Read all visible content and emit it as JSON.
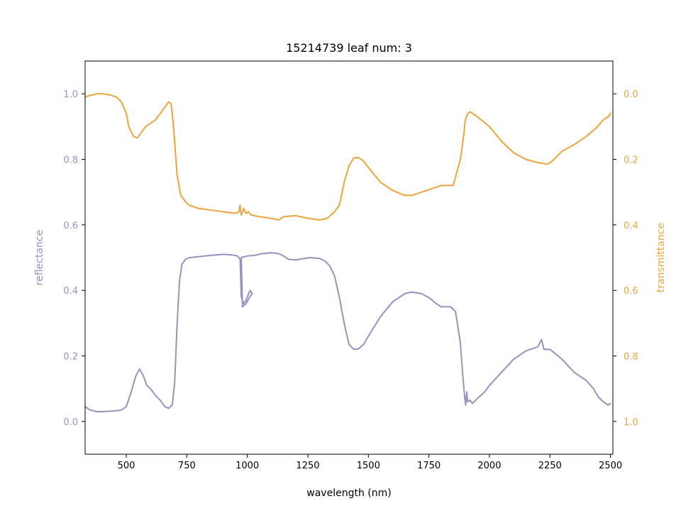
{
  "colors": {
    "reflectance": "#9891c3",
    "transmittance": "#eea43c",
    "axis": "#000000",
    "background": "#ffffff"
  },
  "chart_data": {
    "type": "line",
    "title": "15214739 leaf num: 3",
    "xlabel": "wavelength (nm)",
    "ylabel_left": "reflectance",
    "ylabel_right": "transmittance",
    "xlim": [
      330,
      2510
    ],
    "ylim_left": [
      -0.1,
      1.1
    ],
    "ylim_right": [
      1.1,
      -0.1
    ],
    "right_axis_inverted": true,
    "grid": false,
    "x_ticks": [
      500,
      750,
      1000,
      1250,
      1500,
      1750,
      2000,
      2250,
      2500
    ],
    "x_tick_labels": [
      "500",
      "750",
      "1000",
      "1250",
      "1500",
      "1750",
      "2000",
      "2250",
      "2500"
    ],
    "y_left_ticks": [
      0.0,
      0.2,
      0.4,
      0.6,
      0.8,
      1.0
    ],
    "y_left_tick_labels": [
      "0.0",
      "0.2",
      "0.4",
      "0.6",
      "0.8",
      "1.0"
    ],
    "y_right_ticks": [
      0.0,
      0.2,
      0.4,
      0.6,
      0.8,
      1.0
    ],
    "y_right_tick_labels": [
      "0.0",
      "0.2",
      "0.4",
      "0.6",
      "0.8",
      "1.0"
    ],
    "series": [
      {
        "key": "reflectance",
        "axis": "left",
        "points": [
          [
            330,
            0.045
          ],
          [
            350,
            0.035
          ],
          [
            380,
            0.03
          ],
          [
            400,
            0.03
          ],
          [
            450,
            0.032
          ],
          [
            480,
            0.035
          ],
          [
            500,
            0.045
          ],
          [
            520,
            0.09
          ],
          [
            540,
            0.14
          ],
          [
            555,
            0.16
          ],
          [
            570,
            0.14
          ],
          [
            585,
            0.11
          ],
          [
            600,
            0.1
          ],
          [
            620,
            0.08
          ],
          [
            640,
            0.065
          ],
          [
            660,
            0.045
          ],
          [
            675,
            0.04
          ],
          [
            690,
            0.05
          ],
          [
            700,
            0.12
          ],
          [
            710,
            0.3
          ],
          [
            720,
            0.43
          ],
          [
            730,
            0.48
          ],
          [
            745,
            0.495
          ],
          [
            760,
            0.5
          ],
          [
            800,
            0.503
          ],
          [
            850,
            0.507
          ],
          [
            900,
            0.51
          ],
          [
            940,
            0.508
          ],
          [
            960,
            0.505
          ],
          [
            970,
            0.495
          ],
          [
            975,
            0.38
          ],
          [
            985,
            0.36
          ],
          [
            995,
            0.37
          ],
          [
            1005,
            0.39
          ],
          [
            1012,
            0.4
          ],
          [
            1020,
            0.39
          ],
          [
            1010,
            0.38
          ],
          [
            995,
            0.36
          ],
          [
            980,
            0.35
          ],
          [
            975,
            0.5
          ],
          [
            1000,
            0.505
          ],
          [
            1030,
            0.507
          ],
          [
            1060,
            0.512
          ],
          [
            1100,
            0.515
          ],
          [
            1130,
            0.512
          ],
          [
            1150,
            0.505
          ],
          [
            1170,
            0.495
          ],
          [
            1200,
            0.493
          ],
          [
            1230,
            0.497
          ],
          [
            1260,
            0.5
          ],
          [
            1300,
            0.497
          ],
          [
            1320,
            0.49
          ],
          [
            1340,
            0.475
          ],
          [
            1360,
            0.445
          ],
          [
            1380,
            0.38
          ],
          [
            1400,
            0.3
          ],
          [
            1420,
            0.235
          ],
          [
            1440,
            0.22
          ],
          [
            1460,
            0.222
          ],
          [
            1480,
            0.235
          ],
          [
            1500,
            0.26
          ],
          [
            1550,
            0.32
          ],
          [
            1600,
            0.365
          ],
          [
            1650,
            0.39
          ],
          [
            1680,
            0.395
          ],
          [
            1720,
            0.39
          ],
          [
            1750,
            0.378
          ],
          [
            1780,
            0.36
          ],
          [
            1800,
            0.35
          ],
          [
            1840,
            0.35
          ],
          [
            1860,
            0.335
          ],
          [
            1880,
            0.24
          ],
          [
            1890,
            0.14
          ],
          [
            1897,
            0.08
          ],
          [
            1902,
            0.05
          ],
          [
            1906,
            0.09
          ],
          [
            1910,
            0.06
          ],
          [
            1920,
            0.065
          ],
          [
            1930,
            0.055
          ],
          [
            1950,
            0.07
          ],
          [
            1980,
            0.09
          ],
          [
            2000,
            0.11
          ],
          [
            2050,
            0.15
          ],
          [
            2100,
            0.19
          ],
          [
            2150,
            0.215
          ],
          [
            2200,
            0.228
          ],
          [
            2215,
            0.25
          ],
          [
            2225,
            0.22
          ],
          [
            2250,
            0.22
          ],
          [
            2300,
            0.19
          ],
          [
            2350,
            0.15
          ],
          [
            2400,
            0.125
          ],
          [
            2430,
            0.1
          ],
          [
            2450,
            0.075
          ],
          [
            2470,
            0.06
          ],
          [
            2490,
            0.05
          ],
          [
            2500,
            0.055
          ]
        ]
      },
      {
        "key": "transmittance",
        "axis": "right",
        "points": [
          [
            330,
            0.01
          ],
          [
            350,
            0.005
          ],
          [
            380,
            0.0
          ],
          [
            400,
            0.0
          ],
          [
            430,
            0.003
          ],
          [
            460,
            0.01
          ],
          [
            480,
            0.025
          ],
          [
            500,
            0.06
          ],
          [
            510,
            0.1
          ],
          [
            530,
            0.13
          ],
          [
            545,
            0.135
          ],
          [
            560,
            0.12
          ],
          [
            580,
            0.1
          ],
          [
            600,
            0.09
          ],
          [
            620,
            0.08
          ],
          [
            640,
            0.06
          ],
          [
            660,
            0.04
          ],
          [
            675,
            0.025
          ],
          [
            685,
            0.03
          ],
          [
            695,
            0.1
          ],
          [
            710,
            0.25
          ],
          [
            725,
            0.31
          ],
          [
            745,
            0.33
          ],
          [
            760,
            0.34
          ],
          [
            800,
            0.35
          ],
          [
            850,
            0.355
          ],
          [
            900,
            0.36
          ],
          [
            950,
            0.365
          ],
          [
            965,
            0.36
          ],
          [
            970,
            0.34
          ],
          [
            975,
            0.37
          ],
          [
            985,
            0.35
          ],
          [
            995,
            0.365
          ],
          [
            1005,
            0.36
          ],
          [
            1015,
            0.37
          ],
          [
            1050,
            0.375
          ],
          [
            1100,
            0.38
          ],
          [
            1130,
            0.385
          ],
          [
            1150,
            0.375
          ],
          [
            1200,
            0.372
          ],
          [
            1250,
            0.38
          ],
          [
            1300,
            0.385
          ],
          [
            1330,
            0.38
          ],
          [
            1360,
            0.36
          ],
          [
            1380,
            0.34
          ],
          [
            1400,
            0.27
          ],
          [
            1420,
            0.22
          ],
          [
            1440,
            0.195
          ],
          [
            1460,
            0.195
          ],
          [
            1480,
            0.205
          ],
          [
            1500,
            0.225
          ],
          [
            1550,
            0.27
          ],
          [
            1600,
            0.295
          ],
          [
            1650,
            0.31
          ],
          [
            1680,
            0.31
          ],
          [
            1720,
            0.3
          ],
          [
            1760,
            0.29
          ],
          [
            1800,
            0.28
          ],
          [
            1850,
            0.28
          ],
          [
            1880,
            0.2
          ],
          [
            1895,
            0.12
          ],
          [
            1900,
            0.08
          ],
          [
            1910,
            0.06
          ],
          [
            1920,
            0.055
          ],
          [
            1950,
            0.07
          ],
          [
            2000,
            0.1
          ],
          [
            2050,
            0.145
          ],
          [
            2100,
            0.18
          ],
          [
            2150,
            0.2
          ],
          [
            2200,
            0.21
          ],
          [
            2240,
            0.215
          ],
          [
            2260,
            0.205
          ],
          [
            2300,
            0.175
          ],
          [
            2350,
            0.155
          ],
          [
            2400,
            0.13
          ],
          [
            2440,
            0.105
          ],
          [
            2470,
            0.08
          ],
          [
            2490,
            0.07
          ],
          [
            2500,
            0.06
          ]
        ]
      }
    ]
  }
}
